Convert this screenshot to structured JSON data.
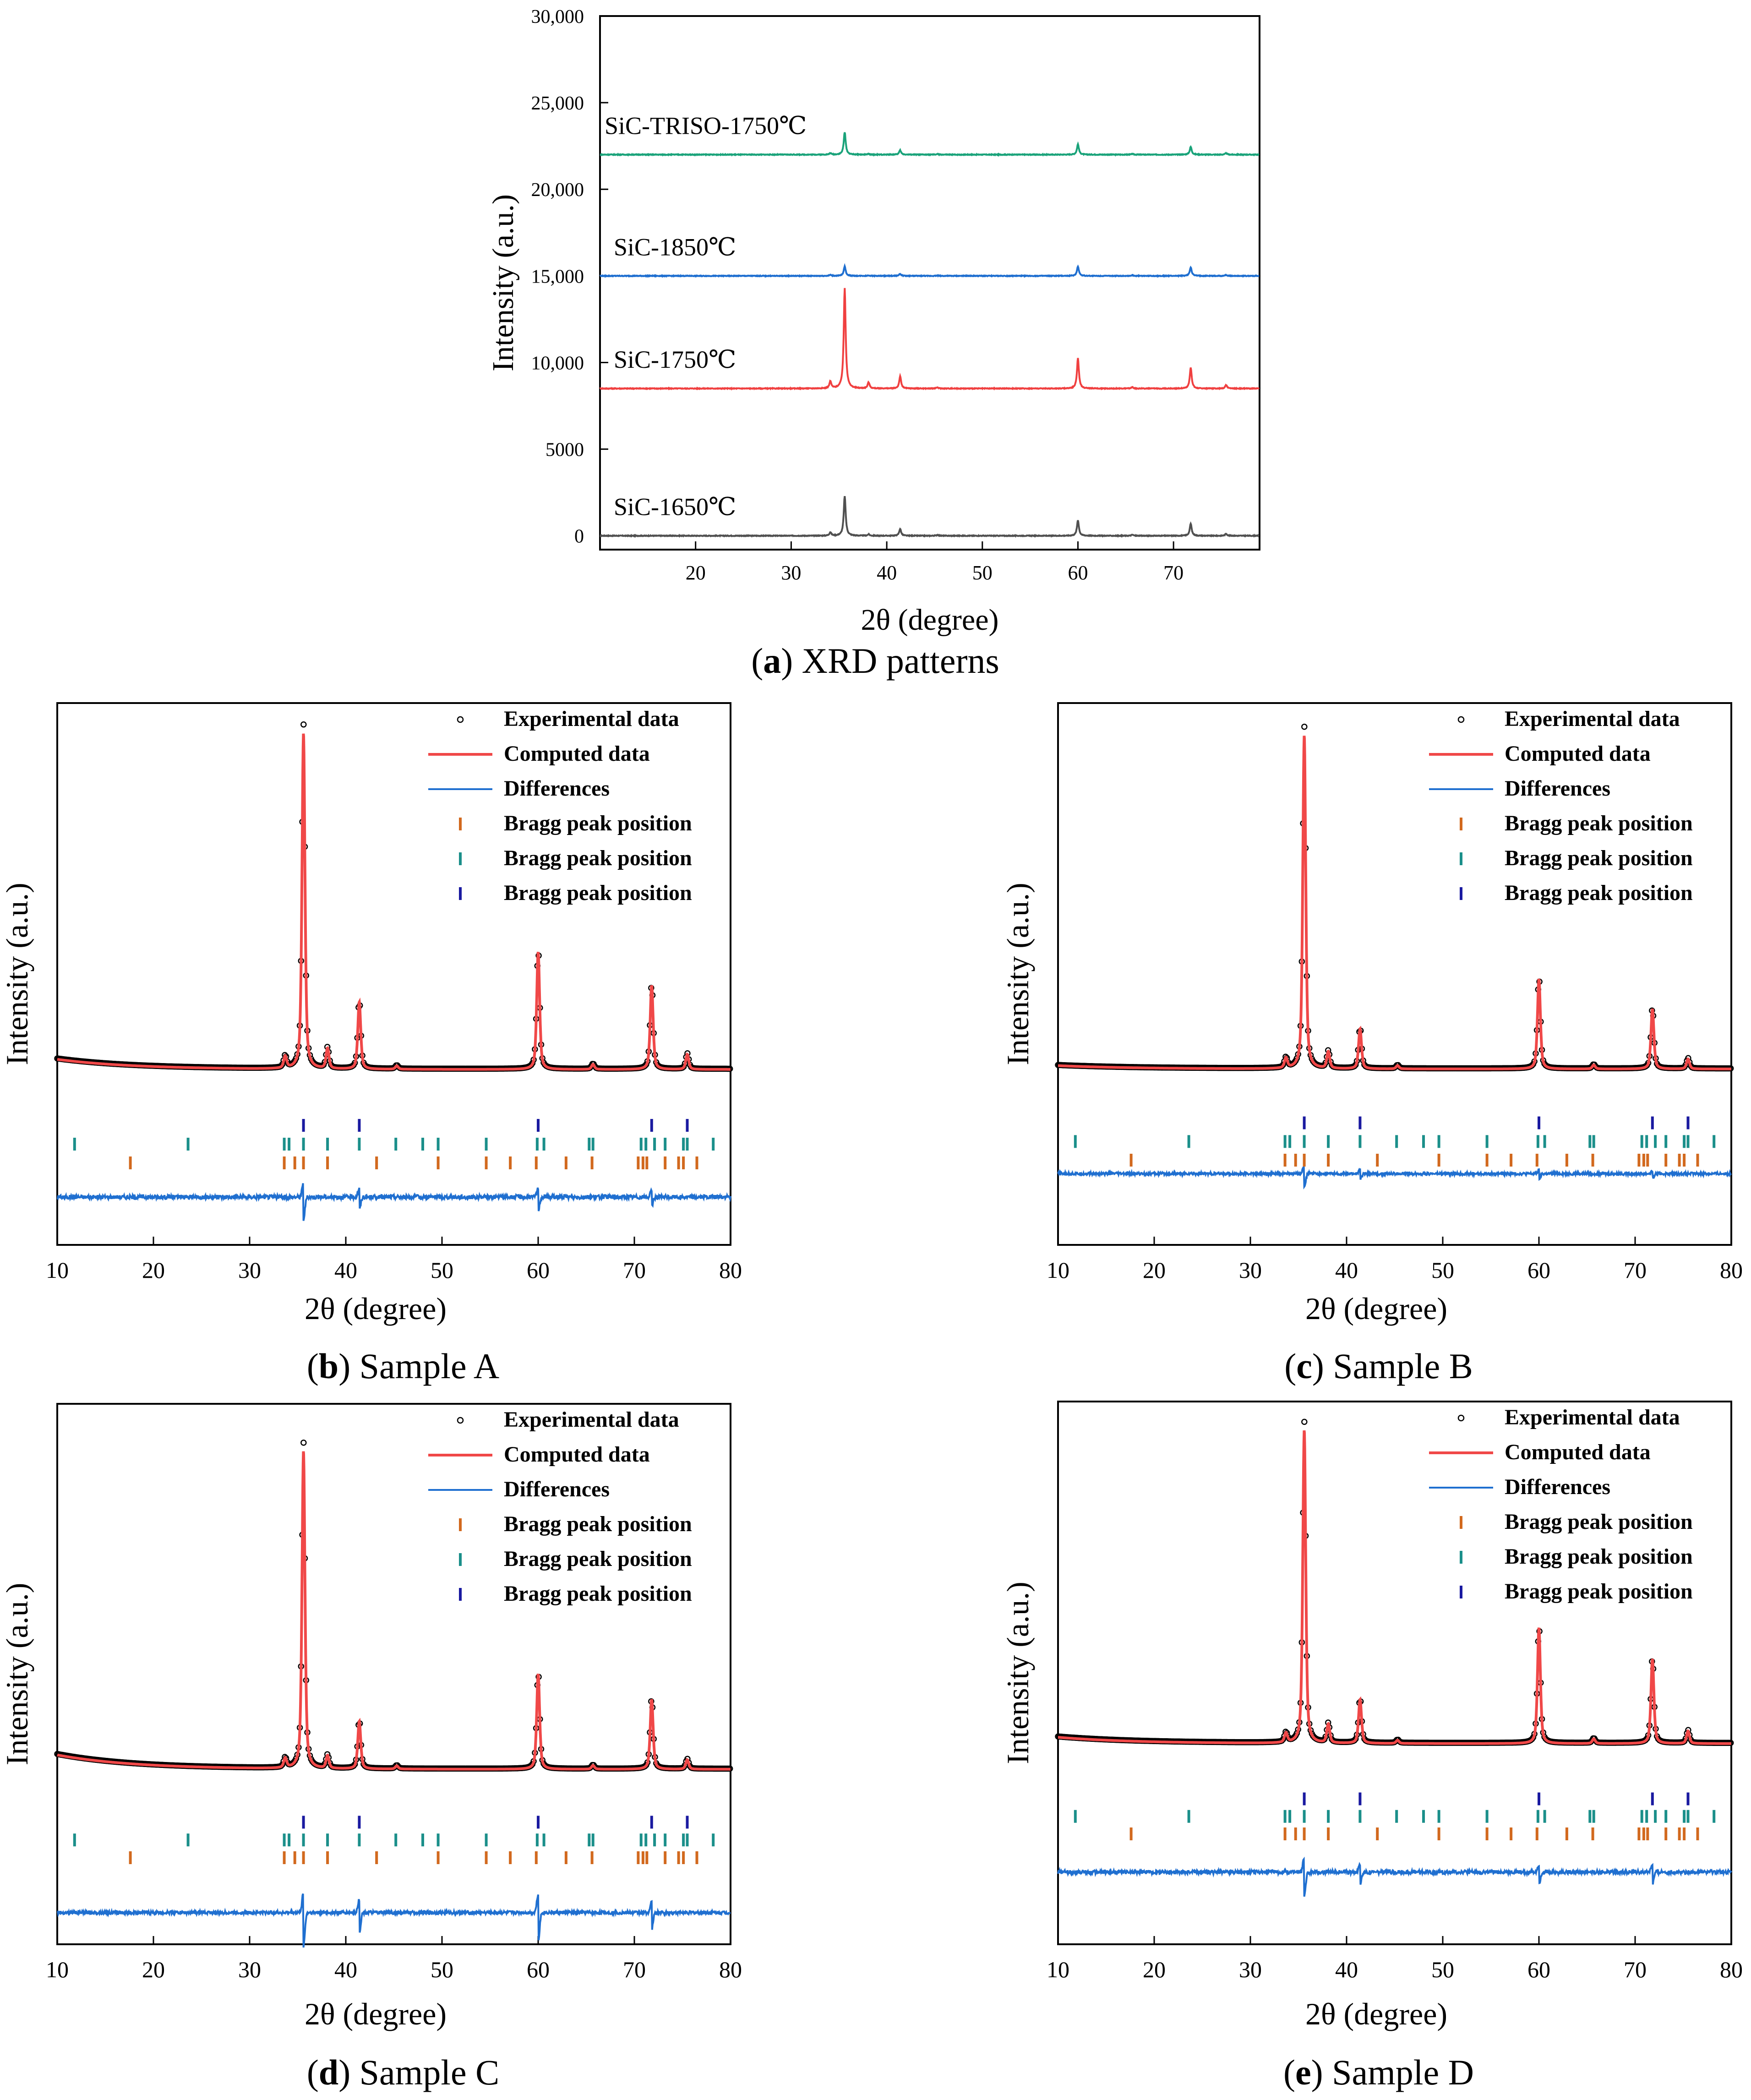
{
  "chart_data": [
    {
      "id": "a",
      "type": "line",
      "caption_letter": "a",
      "caption_text": "XRD patterns",
      "xlabel": "2θ (degree)",
      "ylabel": "Intensity (a.u.)",
      "xlim": [
        10,
        79
      ],
      "ylim": [
        -800,
        30000
      ],
      "xticks": [
        20,
        30,
        40,
        50,
        60,
        70
      ],
      "yticks": [
        0,
        5000,
        10000,
        15000,
        20000,
        25000,
        30000
      ],
      "ytick_labels": [
        "0",
        "5000",
        "10,000",
        "15,000",
        "20,000",
        "25,000",
        "30,000"
      ],
      "peaks_2theta": [
        34.1,
        35.6,
        38.1,
        41.4,
        45.3,
        60.0,
        65.7,
        71.8,
        75.5
      ],
      "series": [
        {
          "name": "SiC-1650℃",
          "color": "#505050",
          "baseline": 0,
          "peak_heights": [
            200,
            2300,
            80,
            400,
            50,
            900,
            60,
            700,
            120
          ]
        },
        {
          "name": "SiC-1750℃",
          "color": "#f04040",
          "baseline": 8500,
          "peak_heights": [
            400,
            5800,
            350,
            700,
            60,
            1750,
            80,
            1200,
            200
          ]
        },
        {
          "name": "SiC-1850℃",
          "color": "#1f6fd0",
          "baseline": 15000,
          "peak_heights": [
            60,
            550,
            30,
            120,
            20,
            550,
            40,
            500,
            50
          ]
        },
        {
          "name": "SiC-TRISO-1750℃",
          "color": "#1aa37a",
          "baseline": 22000,
          "peak_heights": [
            80,
            1300,
            40,
            250,
            30,
            600,
            40,
            450,
            80
          ]
        }
      ]
    },
    {
      "id": "b",
      "type": "scatter",
      "caption_letter": "b",
      "caption_text": "Sample A",
      "xlabel": "2θ (degree)",
      "ylabel": "Intensity (a.u.)",
      "xlim": [
        10,
        80
      ],
      "xticks": [
        10,
        20,
        30,
        40,
        50,
        60,
        70,
        80
      ],
      "background": 0.075,
      "bg_decay": 0.03,
      "peaks": [
        [
          33.7,
          0.035
        ],
        [
          35.6,
          1.0
        ],
        [
          38.1,
          0.06
        ],
        [
          41.4,
          0.2
        ],
        [
          45.3,
          0.01
        ],
        [
          60.0,
          0.35
        ],
        [
          65.7,
          0.015
        ],
        [
          71.8,
          0.25
        ],
        [
          75.5,
          0.045
        ]
      ],
      "diff_offset": -0.3,
      "diff_noise": 0.006,
      "diff_spikes": [
        [
          35.6,
          0.05
        ],
        [
          41.4,
          0.03
        ],
        [
          60.0,
          0.03
        ],
        [
          71.8,
          0.02
        ]
      ],
      "bragg": {
        "orange": [
          17.6,
          33.6,
          34.7,
          35.6,
          38.1,
          43.2,
          49.6,
          54.6,
          57.1,
          59.8,
          62.9,
          65.6,
          70.4,
          70.9,
          71.3,
          73.2,
          74.6,
          75.1,
          76.5
        ],
        "teal": [
          11.8,
          23.6,
          33.6,
          34.1,
          35.6,
          38.1,
          41.4,
          45.2,
          48.0,
          49.6,
          54.6,
          59.9,
          60.6,
          65.3,
          65.7,
          70.7,
          71.2,
          72.1,
          73.2,
          75.1,
          75.5,
          78.2
        ],
        "navy": [
          35.6,
          41.4,
          60.0,
          71.8,
          75.5
        ]
      },
      "legend": {
        "experimental": "Experimental data",
        "computed": "Computed data",
        "differences": "Differences",
        "bragg1": "Bragg peak position",
        "bragg2": "Bragg peak position",
        "bragg3": "Bragg peak position"
      }
    },
    {
      "id": "c",
      "type": "scatter",
      "caption_letter": "c",
      "caption_text": "Sample B",
      "xlabel": "2θ (degree)",
      "ylabel": "Intensity (a.u.)",
      "xlim": [
        10,
        80
      ],
      "xticks": [
        10,
        20,
        30,
        40,
        50,
        60,
        70,
        80
      ],
      "background": 0.07,
      "bg_decay": 0.01,
      "peaks": [
        [
          33.7,
          0.03
        ],
        [
          35.6,
          1.0
        ],
        [
          38.1,
          0.05
        ],
        [
          41.4,
          0.12
        ],
        [
          45.3,
          0.01
        ],
        [
          60.0,
          0.27
        ],
        [
          65.7,
          0.012
        ],
        [
          71.8,
          0.18
        ],
        [
          75.5,
          0.03
        ]
      ],
      "diff_offset": -0.24,
      "diff_noise": 0.004,
      "diff_spikes": [
        [
          35.6,
          0.03
        ],
        [
          41.4,
          0.015
        ],
        [
          60.0,
          0.012
        ],
        [
          71.8,
          0.01
        ]
      ],
      "bragg": {
        "orange": [
          17.6,
          33.6,
          34.7,
          35.6,
          38.1,
          43.2,
          49.6,
          54.6,
          57.1,
          59.8,
          62.9,
          65.6,
          70.4,
          70.9,
          71.3,
          73.2,
          74.6,
          75.1,
          76.5
        ],
        "teal": [
          11.8,
          23.6,
          33.6,
          34.1,
          35.6,
          38.1,
          41.4,
          45.2,
          48.0,
          49.6,
          54.6,
          59.9,
          60.6,
          65.3,
          65.7,
          70.7,
          71.2,
          72.1,
          73.2,
          75.1,
          75.5,
          78.2
        ],
        "navy": [
          35.6,
          41.4,
          60.0,
          71.8,
          75.5
        ]
      },
      "legend": {
        "experimental": "Experimental data",
        "computed": "Computed data",
        "differences": "Differences",
        "bragg1": "Bragg peak position",
        "bragg2": "Bragg peak position",
        "bragg3": "Bragg peak position"
      }
    },
    {
      "id": "d",
      "type": "scatter",
      "caption_letter": "d",
      "caption_text": "Sample C",
      "xlabel": "2θ (degree)",
      "ylabel": "Intensity (a.u.)",
      "xlim": [
        10,
        80
      ],
      "xticks": [
        10,
        20,
        30,
        40,
        50,
        60,
        70,
        80
      ],
      "background": 0.075,
      "bg_decay": 0.045,
      "peaks": [
        [
          33.7,
          0.03
        ],
        [
          35.6,
          1.0
        ],
        [
          38.1,
          0.04
        ],
        [
          41.4,
          0.15
        ],
        [
          45.3,
          0.01
        ],
        [
          60.0,
          0.3
        ],
        [
          65.7,
          0.012
        ],
        [
          71.8,
          0.22
        ],
        [
          75.5,
          0.03
        ]
      ],
      "diff_offset": -0.37,
      "diff_noise": 0.005,
      "diff_spikes": [
        [
          35.6,
          0.08
        ],
        [
          41.4,
          0.05
        ],
        [
          60.0,
          0.07
        ],
        [
          71.8,
          0.04
        ]
      ],
      "bragg": {
        "orange": [
          17.6,
          33.6,
          34.7,
          35.6,
          38.1,
          43.2,
          49.6,
          54.6,
          57.1,
          59.8,
          62.9,
          65.6,
          70.4,
          70.9,
          71.3,
          73.2,
          74.6,
          75.1,
          76.5
        ],
        "teal": [
          11.8,
          23.6,
          33.6,
          34.1,
          35.6,
          38.1,
          41.4,
          45.2,
          48.0,
          49.6,
          54.6,
          59.9,
          60.6,
          65.3,
          65.7,
          70.7,
          71.2,
          72.1,
          73.2,
          75.1,
          75.5,
          78.2
        ],
        "navy": [
          35.6,
          41.4,
          60.0,
          71.8,
          75.5
        ]
      },
      "legend": {
        "experimental": "Experimental data",
        "computed": "Computed data",
        "differences": "Differences",
        "bragg1": "Bragg peak position",
        "bragg2": "Bragg peak position",
        "bragg3": "Bragg peak position"
      }
    },
    {
      "id": "e",
      "type": "scatter",
      "caption_letter": "e",
      "caption_text": "Sample D",
      "xlabel": "2θ (degree)",
      "ylabel": "Intensity (a.u.)",
      "xlim": [
        10,
        80
      ],
      "xticks": [
        10,
        20,
        30,
        40,
        50,
        60,
        70,
        80
      ],
      "background": 0.085,
      "bg_decay": 0.02,
      "peaks": [
        [
          33.7,
          0.03
        ],
        [
          35.6,
          1.0
        ],
        [
          38.1,
          0.06
        ],
        [
          41.4,
          0.14
        ],
        [
          45.3,
          0.01
        ],
        [
          60.0,
          0.37
        ],
        [
          65.7,
          0.015
        ],
        [
          71.8,
          0.27
        ],
        [
          75.5,
          0.04
        ]
      ],
      "diff_offset": -0.32,
      "diff_noise": 0.006,
      "diff_spikes": [
        [
          35.6,
          0.06
        ],
        [
          41.4,
          0.03
        ],
        [
          60.0,
          0.03
        ],
        [
          71.8,
          0.03
        ]
      ],
      "bragg": {
        "orange": [
          17.6,
          33.6,
          34.7,
          35.6,
          38.1,
          43.2,
          49.6,
          54.6,
          57.1,
          59.8,
          62.9,
          65.6,
          70.4,
          70.9,
          71.3,
          73.2,
          74.6,
          75.1,
          76.5
        ],
        "teal": [
          11.8,
          23.6,
          33.6,
          34.1,
          35.6,
          38.1,
          41.4,
          45.2,
          48.0,
          49.6,
          54.6,
          59.9,
          60.6,
          65.3,
          65.7,
          70.7,
          71.2,
          72.1,
          73.2,
          75.1,
          75.5,
          78.2
        ],
        "navy": [
          35.6,
          41.4,
          60.0,
          71.8,
          75.5
        ]
      },
      "legend": {
        "experimental": "Experimental data",
        "computed": "Computed data",
        "differences": "Differences",
        "bragg1": "Bragg peak position",
        "bragg2": "Bragg peak position",
        "bragg3": "Bragg peak position"
      }
    }
  ],
  "colors": {
    "experimental": "#000000",
    "computed": "#f04848",
    "differences": "#1f6fd0",
    "bragg_orange": "#d2691e",
    "bragg_teal": "#1b8f8a",
    "bragg_navy": "#1a1aa0"
  }
}
